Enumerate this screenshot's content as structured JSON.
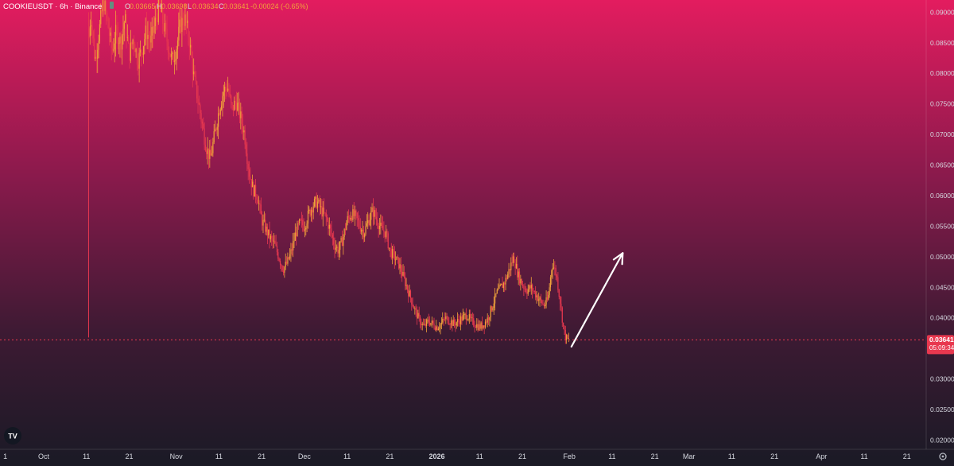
{
  "header": {
    "symbol_text": "COOKIEUSDT · 6h · Binance",
    "o_label": "O",
    "o_value": "0.03665",
    "h_label": "H",
    "h_value": "0.03698",
    "l_label": "L",
    "l_value": "0.03634",
    "c_label": "C",
    "c_value": "0.03641",
    "change": "-0.00024 (-0.65%)"
  },
  "logo": {
    "text": "TV"
  },
  "colors": {
    "bg_top": "#e31c5f",
    "bg_bottom": "#1b1a26",
    "candle_up": "#f0a23a",
    "candle_down": "#e8384f",
    "price_tag": "#e8384f",
    "arrow": "#ffffff"
  },
  "chart_data": {
    "type": "candlestick",
    "symbol": "COOKIEUSDT",
    "interval": "6h",
    "exchange": "Binance",
    "ylim": [
      0.0185,
      0.092
    ],
    "y_ticks": [
      "0.02000",
      "0.02500",
      "0.03000",
      "0.03500",
      "0.04000",
      "0.04500",
      "0.05000",
      "0.05500",
      "0.06000",
      "0.06500",
      "0.07000",
      "0.07500",
      "0.08000",
      "0.08500",
      "0.09000"
    ],
    "x_ticks": [
      {
        "label": "1",
        "day": -9
      },
      {
        "label": "Oct",
        "day": 0
      },
      {
        "label": "11",
        "day": 10
      },
      {
        "label": "21",
        "day": 20
      },
      {
        "label": "Nov",
        "day": 31
      },
      {
        "label": "11",
        "day": 41
      },
      {
        "label": "21",
        "day": 51
      },
      {
        "label": "Dec",
        "day": 61
      },
      {
        "label": "11",
        "day": 71
      },
      {
        "label": "21",
        "day": 81
      },
      {
        "label": "2026",
        "day": 92
      },
      {
        "label": "11",
        "day": 102
      },
      {
        "label": "21",
        "day": 112
      },
      {
        "label": "Feb",
        "day": 123
      },
      {
        "label": "11",
        "day": 133
      },
      {
        "label": "21",
        "day": 143
      },
      {
        "label": "Mar",
        "day": 151
      },
      {
        "label": "11",
        "day": 161
      },
      {
        "label": "21",
        "day": 171
      },
      {
        "label": "Apr",
        "day": 182
      },
      {
        "label": "11",
        "day": 192
      },
      {
        "label": "21",
        "day": 202
      }
    ],
    "price_path": [
      [
        10.5,
        0.0368
      ],
      [
        10.6,
        0.086
      ],
      [
        11,
        0.09
      ],
      [
        12,
        0.082
      ],
      [
        13,
        0.087
      ],
      [
        14,
        0.092
      ],
      [
        15,
        0.088
      ],
      [
        16,
        0.0835
      ],
      [
        17,
        0.087
      ],
      [
        18,
        0.085
      ],
      [
        19,
        0.089
      ],
      [
        20,
        0.083
      ],
      [
        21,
        0.086
      ],
      [
        22,
        0.082
      ],
      [
        23,
        0.084
      ],
      [
        24,
        0.087
      ],
      [
        25,
        0.085
      ],
      [
        26,
        0.088
      ],
      [
        27,
        0.091
      ],
      [
        28,
        0.088
      ],
      [
        29,
        0.085
      ],
      [
        30,
        0.082
      ],
      [
        31,
        0.084
      ],
      [
        32,
        0.088
      ],
      [
        33,
        0.089
      ],
      [
        34,
        0.086
      ],
      [
        35,
        0.08
      ],
      [
        36,
        0.076
      ],
      [
        37,
        0.072
      ],
      [
        38,
        0.068
      ],
      [
        39,
        0.066
      ],
      [
        40,
        0.07
      ],
      [
        41,
        0.074
      ],
      [
        42,
        0.077
      ],
      [
        43,
        0.078
      ],
      [
        44,
        0.074
      ],
      [
        45,
        0.0755
      ],
      [
        46,
        0.073
      ],
      [
        47,
        0.07
      ],
      [
        48,
        0.064
      ],
      [
        49,
        0.061
      ],
      [
        50,
        0.06
      ],
      [
        51,
        0.056
      ],
      [
        52,
        0.0545
      ],
      [
        53,
        0.053
      ],
      [
        54,
        0.052
      ],
      [
        55,
        0.05
      ],
      [
        56,
        0.048
      ],
      [
        57,
        0.049
      ],
      [
        58,
        0.051
      ],
      [
        59,
        0.054
      ],
      [
        60,
        0.0555
      ],
      [
        61,
        0.055
      ],
      [
        62,
        0.057
      ],
      [
        63,
        0.0585
      ],
      [
        64,
        0.059
      ],
      [
        65,
        0.0575
      ],
      [
        66,
        0.0565
      ],
      [
        67,
        0.0545
      ],
      [
        68,
        0.052
      ],
      [
        69,
        0.051
      ],
      [
        70,
        0.053
      ],
      [
        71,
        0.056
      ],
      [
        72,
        0.057
      ],
      [
        73,
        0.0565
      ],
      [
        74,
        0.055
      ],
      [
        75,
        0.054
      ],
      [
        76,
        0.056
      ],
      [
        77,
        0.0575
      ],
      [
        78,
        0.056
      ],
      [
        79,
        0.0545
      ],
      [
        80,
        0.054
      ],
      [
        81,
        0.051
      ],
      [
        82,
        0.05
      ],
      [
        83,
        0.049
      ],
      [
        84,
        0.047
      ],
      [
        85,
        0.045
      ],
      [
        86,
        0.043
      ],
      [
        87,
        0.041
      ],
      [
        88,
        0.0395
      ],
      [
        89,
        0.0385
      ],
      [
        90,
        0.0395
      ],
      [
        91,
        0.039
      ],
      [
        92,
        0.0385
      ],
      [
        93,
        0.039
      ],
      [
        94,
        0.04
      ],
      [
        95,
        0.0395
      ],
      [
        96,
        0.039
      ],
      [
        97,
        0.0395
      ],
      [
        98,
        0.04
      ],
      [
        99,
        0.0405
      ],
      [
        100,
        0.0395
      ],
      [
        101,
        0.039
      ],
      [
        102,
        0.0385
      ],
      [
        103,
        0.039
      ],
      [
        104,
        0.04
      ],
      [
        105,
        0.042
      ],
      [
        106,
        0.044
      ],
      [
        107,
        0.045
      ],
      [
        108,
        0.046
      ],
      [
        109,
        0.048
      ],
      [
        110,
        0.05
      ],
      [
        111,
        0.047
      ],
      [
        112,
        0.0455
      ],
      [
        113,
        0.0445
      ],
      [
        114,
        0.045
      ],
      [
        115,
        0.044
      ],
      [
        116,
        0.043
      ],
      [
        117,
        0.042
      ],
      [
        118,
        0.043
      ],
      [
        119,
        0.049
      ],
      [
        120,
        0.047
      ],
      [
        121,
        0.042
      ],
      [
        121.5,
        0.039
      ],
      [
        122,
        0.037
      ],
      [
        122.5,
        0.0365
      ],
      [
        123,
        0.0364
      ]
    ],
    "last_price": "0.03641",
    "last_price_value": 0.03641,
    "countdown": "05:09:34",
    "annotation_arrow": {
      "from": [
        123.5,
        0.0353
      ],
      "to": [
        135.5,
        0.0506
      ]
    },
    "grid": false
  }
}
